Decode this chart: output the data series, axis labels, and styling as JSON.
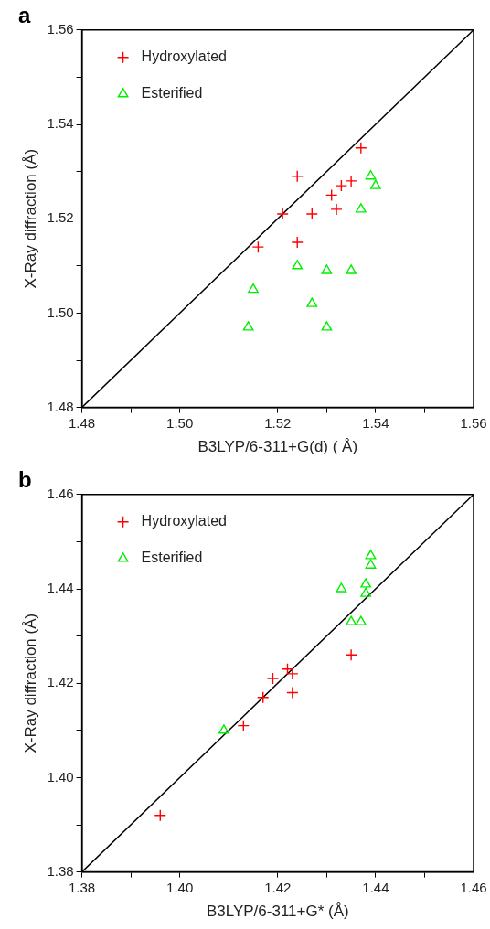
{
  "chart_data": [
    {
      "type": "scatter",
      "title": "a",
      "xlabel": "B3LYP/6-311+G(d) ( Å)",
      "ylabel": "X-Ray diffraction (Å)",
      "xlim": [
        1.48,
        1.56
      ],
      "ylim": [
        1.48,
        1.56
      ],
      "xticks": [
        1.48,
        {
          "value": 1.49,
          "label": null
        },
        {
          "value": 1.5,
          "label": "1.50"
        },
        {
          "value": 1.51,
          "label": null
        },
        1.52,
        {
          "value": 1.53,
          "label": null
        },
        1.54,
        {
          "value": 1.55,
          "label": null
        },
        1.56
      ],
      "yticks": [
        1.48,
        {
          "value": 1.49,
          "label": null
        },
        {
          "value": 1.5,
          "label": "1.50"
        },
        {
          "value": 1.51,
          "label": null
        },
        1.52,
        {
          "value": 1.53,
          "label": null
        },
        1.54,
        {
          "value": 1.55,
          "label": null
        },
        1.56
      ],
      "grid": false,
      "legend": "top left",
      "series": [
        {
          "name": "Hydroxylated",
          "color": "#ff0000",
          "marker": "cross",
          "x": [
            1.537,
            1.524,
            1.535,
            1.533,
            1.531,
            1.521,
            1.527,
            1.532,
            1.524,
            1.516
          ],
          "values": [
            1.535,
            1.529,
            1.528,
            1.527,
            1.525,
            1.521,
            1.521,
            1.522,
            1.515,
            1.514
          ]
        },
        {
          "name": "Esterified",
          "color": "#00ee00",
          "marker": "triangle",
          "x": [
            1.539,
            1.54,
            1.537,
            1.524,
            1.53,
            1.535,
            1.515,
            1.527,
            1.514,
            1.53
          ],
          "values": [
            1.529,
            1.527,
            1.522,
            1.51,
            1.509,
            1.509,
            1.505,
            1.502,
            1.497,
            1.497
          ]
        },
        {
          "type": "line",
          "color": "#000000",
          "marker": "none",
          "x": [
            1.48,
            1.56
          ],
          "values": [
            1.48,
            1.56
          ]
        }
      ]
    },
    {
      "type": "scatter",
      "title": "b",
      "xlabel": "B3LYP/6-311+G* (Å)",
      "ylabel": "X-Ray diffraction (Å)",
      "xlim": [
        1.38,
        1.46
      ],
      "ylim": [
        1.38,
        1.46
      ],
      "xticks": [
        1.38,
        {
          "value": 1.39,
          "label": null
        },
        {
          "value": 1.4,
          "label": "1.40"
        },
        {
          "value": 1.41,
          "label": null
        },
        1.42,
        {
          "value": 1.43,
          "label": null
        },
        1.44,
        {
          "value": 1.45,
          "label": null
        },
        1.46
      ],
      "yticks": [
        1.38,
        {
          "value": 1.39,
          "label": null
        },
        {
          "value": 1.4,
          "label": "1.40"
        },
        {
          "value": 1.41,
          "label": null
        },
        1.42,
        {
          "value": 1.43,
          "label": null
        },
        1.44,
        {
          "value": 1.45,
          "label": null
        },
        1.46
      ],
      "grid": false,
      "legend": "top left",
      "series": [
        {
          "name": "Hydroxylated",
          "color": "#ff0000",
          "marker": "cross",
          "x": [
            1.396,
            1.413,
            1.417,
            1.419,
            1.422,
            1.423,
            1.423,
            1.435
          ],
          "values": [
            1.392,
            1.411,
            1.417,
            1.421,
            1.423,
            1.422,
            1.418,
            1.426
          ]
        },
        {
          "name": "Esterified",
          "color": "#00ee00",
          "marker": "triangle",
          "x": [
            1.409,
            1.433,
            1.435,
            1.437,
            1.438,
            1.438,
            1.439,
            1.439
          ],
          "values": [
            1.41,
            1.44,
            1.433,
            1.433,
            1.441,
            1.439,
            1.447,
            1.445
          ]
        },
        {
          "type": "line",
          "color": "#000000",
          "marker": "none",
          "x": [
            1.38,
            1.46
          ],
          "values": [
            1.38,
            1.46
          ]
        }
      ]
    }
  ]
}
